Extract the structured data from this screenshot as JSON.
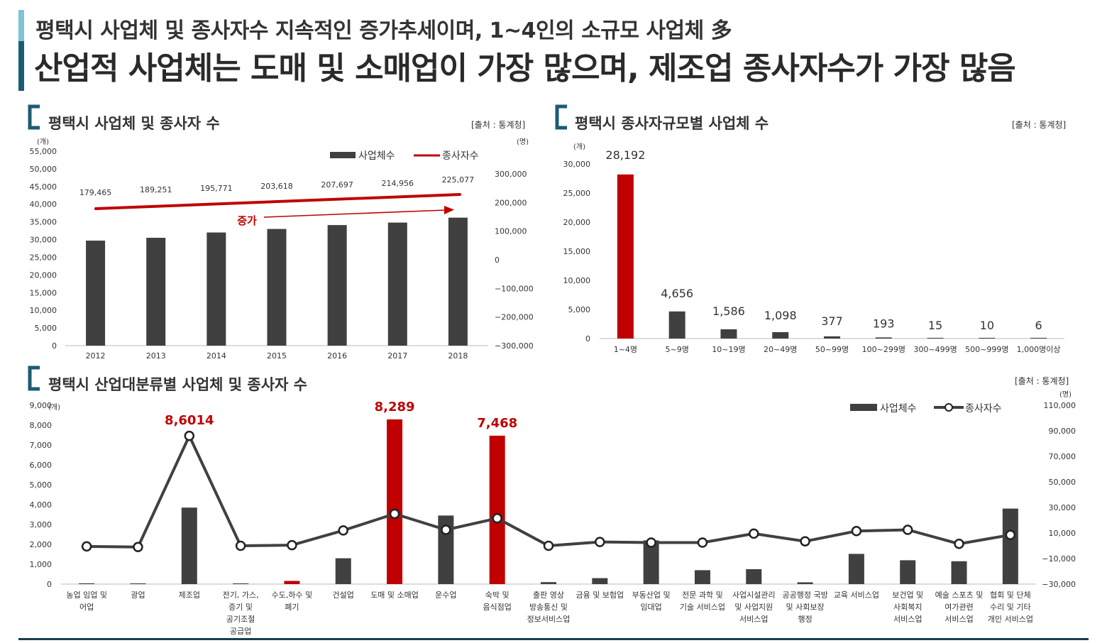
{
  "header": {
    "subtitle": "평택시 사업체 및 종사자수 지속적인 증가추세이며, 1~4인의 소규모 사업체 多",
    "title": "산업적 사업체는 도매 및 소매업이 가장 많으며, 제조업 종사자수가 가장 많음"
  },
  "colors": {
    "bar": "#404040",
    "highlight": "#c00000",
    "line": "#404040",
    "accent": "#1b5c73"
  },
  "panels": {
    "p1": {
      "title": "평택시 사업체 및 종사자 수",
      "source": "[출처 : 통계청]"
    },
    "p2": {
      "title": "평택시 종사자규모별 사업체 수",
      "source": "[출처 : 통계청]"
    },
    "p3": {
      "title": "평택시 산업대분류별 사업체 및 종사자 수",
      "source": "[출처 : 통계청]"
    }
  },
  "chart_data": [
    {
      "type": "bar",
      "categories": [
        "2012",
        "2013",
        "2014",
        "2015",
        "2016",
        "2017",
        "2018"
      ],
      "series": [
        {
          "name": "사업체수",
          "values": [
            29700,
            30500,
            32000,
            33000,
            34100,
            34800,
            36200
          ]
        },
        {
          "name": "종사자수",
          "values": [
            179465,
            189251,
            195771,
            203618,
            207697,
            214956,
            225077
          ]
        }
      ],
      "data_labels": [
        "179,465",
        "189,251",
        "195,771",
        "203,618",
        "207,697",
        "214,956",
        "225,077"
      ],
      "ylim": [
        0,
        55000
      ],
      "yticks": [
        "0",
        "5,000",
        "10,000",
        "15,000",
        "20,000",
        "25,000",
        "30,000",
        "35,000",
        "40,000",
        "45,000",
        "50,000",
        "55,000"
      ],
      "ylabel": "(개)",
      "y2lim": [
        -300000,
        300000
      ],
      "y2ticks": [
        "−300,000",
        "−200,000",
        "−100,000",
        "0",
        "100,000",
        "200,000",
        "300,000"
      ],
      "y2label": "(명)",
      "annotation": "증가",
      "legend": "top-right",
      "grid": false
    },
    {
      "type": "bar",
      "categories": [
        "1~4명",
        "5~9명",
        "10~19명",
        "20~49명",
        "50~99명",
        "100~299명",
        "300~499명",
        "500~999명",
        "1,000명이상"
      ],
      "values": [
        28192,
        4656,
        1586,
        1098,
        377,
        193,
        15,
        10,
        6
      ],
      "data_labels": [
        "28,192",
        "4,656",
        "1,586",
        "1,098",
        "377",
        "193",
        "15",
        "10",
        "6"
      ],
      "highlight_index": 0,
      "ylim": [
        0,
        30000
      ],
      "yticks": [
        "0",
        "5,000",
        "10,000",
        "15,000",
        "20,000",
        "25,000",
        "30,000"
      ],
      "ylabel": "(개)",
      "grid": false
    },
    {
      "type": "bar",
      "categories": [
        [
          "농업 임업 및",
          "어업"
        ],
        [
          "광업"
        ],
        [
          "제조업"
        ],
        [
          "전기, 가스,",
          "증기 및",
          "공기조절",
          "공급업"
        ],
        [
          "수도,하수 및",
          "폐기"
        ],
        [
          "건설업"
        ],
        [
          "도매 및 소매업"
        ],
        [
          "운수업"
        ],
        [
          "숙박 및",
          "음식점업"
        ],
        [
          "출판 영상",
          "방송통신 및",
          "정보서비스업"
        ],
        [
          "금융 및 보험업"
        ],
        [
          "부동산업 및",
          "임대업"
        ],
        [
          "전문 과학 및",
          "기술 서비스업"
        ],
        [
          "사업시설관리",
          "및 사업지원",
          "서비스업"
        ],
        [
          "공공행정 국방",
          "및 사회보장",
          "행정"
        ],
        [
          "교육 서비스업"
        ],
        [
          "보건업 및",
          "사회복지",
          "서비스업"
        ],
        [
          "예술 스포츠 및",
          "여가관련",
          "서비스업"
        ],
        [
          "협회 및 단체",
          "수리 및 기타",
          "개인 서비스업"
        ]
      ],
      "series": [
        {
          "name": "사업체수",
          "values": [
            40,
            10,
            3850,
            30,
            160,
            1300,
            8289,
            3450,
            7468,
            100,
            300,
            2200,
            700,
            750,
            90,
            1520,
            1200,
            1150,
            3800
          ]
        },
        {
          "name": "종사자수",
          "values": [
            -500,
            -1000,
            86014,
            0,
            500,
            12000,
            25000,
            12500,
            21500,
            0,
            3000,
            2500,
            2500,
            9500,
            3500,
            11500,
            12500,
            1500,
            8500
          ]
        }
      ],
      "highlight_indices": [
        4,
        6,
        8
      ],
      "data_labels": [
        {
          "index": 2,
          "text": "8,6014"
        },
        {
          "index": 6,
          "text": "8,289"
        },
        {
          "index": 8,
          "text": "7,468"
        }
      ],
      "ylim": [
        0,
        9000
      ],
      "yticks": [
        "0",
        "1,000",
        "2,000",
        "3,000",
        "4,000",
        "5,000",
        "6,000",
        "7,000",
        "8,000",
        "9,000"
      ],
      "ylabel": "(개)",
      "y2lim": [
        -30000,
        110000
      ],
      "y2ticks": [
        "−30,000",
        "−10,000",
        "10,000",
        "30,000",
        "50,000",
        "70,000",
        "90,000",
        "110,000"
      ],
      "y2label": "(명)",
      "legend": "top-right",
      "grid": false
    }
  ]
}
